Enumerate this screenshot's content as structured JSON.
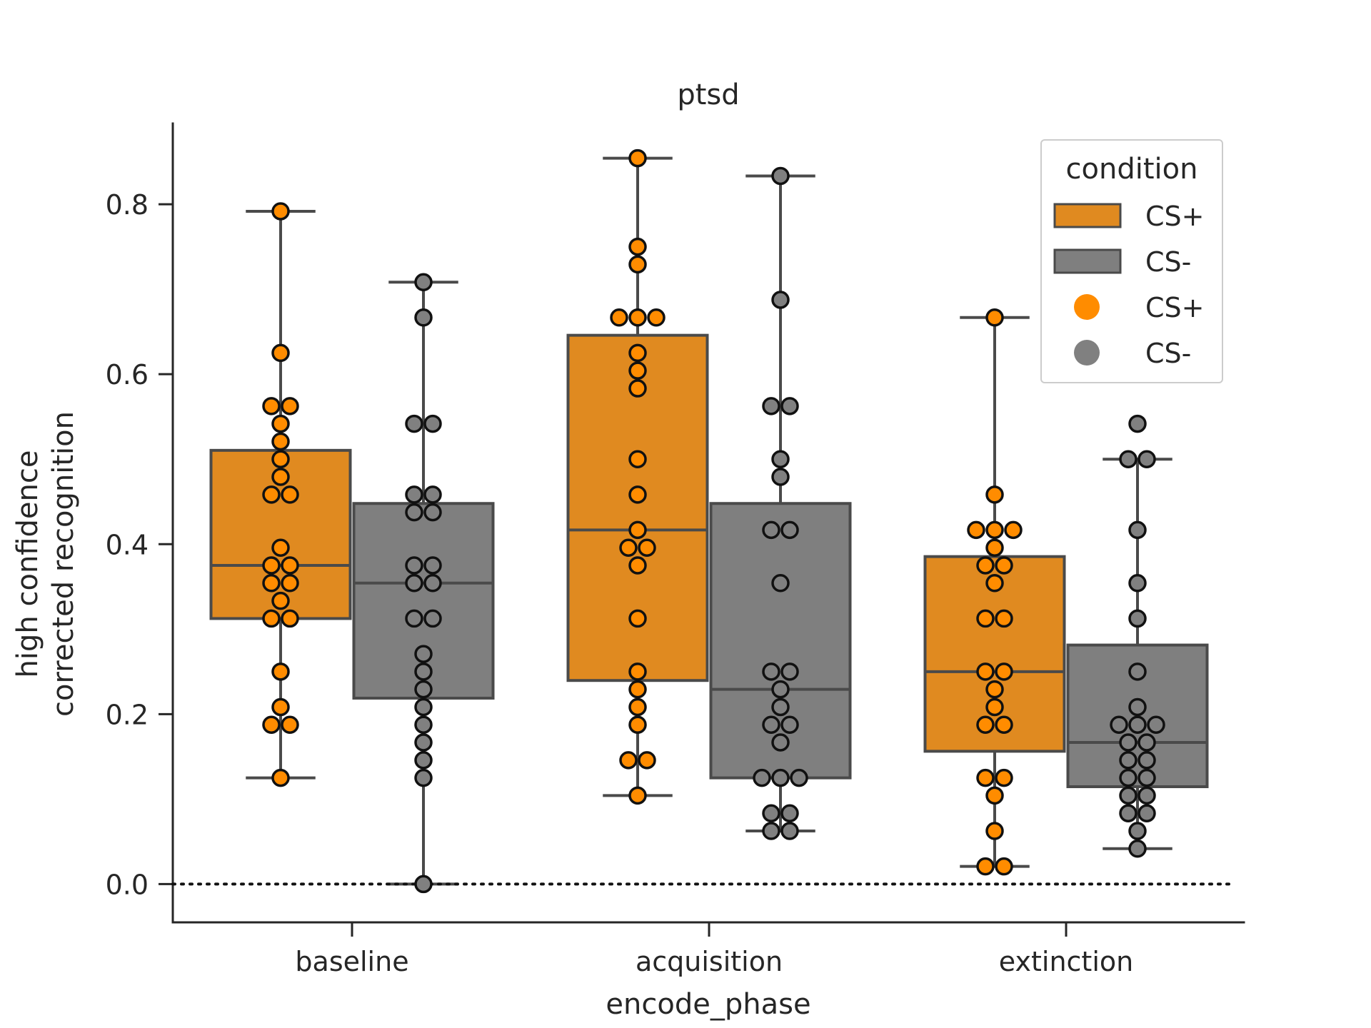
{
  "chart_data": {
    "type": "box",
    "title": "ptsd",
    "xlabel": "encode_phase",
    "ylabel_lines": [
      "high confidence",
      "corrected recognition"
    ],
    "categories": [
      "baseline",
      "acquisition",
      "extinction"
    ],
    "ylim": [
      -0.045,
      0.895
    ],
    "yticks": [
      "0.0",
      "0.2",
      "0.4",
      "0.6",
      "0.8"
    ],
    "ytick_values": [
      0.0,
      0.2,
      0.4,
      0.6,
      0.8
    ],
    "reference_line": 0.0,
    "grid": false,
    "legend": {
      "title": "condition",
      "position": "top-right",
      "entries": [
        {
          "label": "CS+",
          "kind": "box",
          "color": "#E08A20"
        },
        {
          "label": "CS-",
          "kind": "box",
          "color": "#7F7F7F"
        },
        {
          "label": "CS+",
          "kind": "point",
          "color": "#FF8C00"
        },
        {
          "label": "CS-",
          "kind": "point",
          "color": "#808080"
        }
      ]
    },
    "series": [
      {
        "name": "CS+",
        "box_color": "#E08A20",
        "point_color": "#FF8C00",
        "boxes": [
          {
            "category": "baseline",
            "whislo": 0.125,
            "q1": 0.3125,
            "median": 0.375,
            "q3": 0.5104,
            "whishi": 0.7917,
            "fliers": []
          },
          {
            "category": "acquisition",
            "whislo": 0.1042,
            "q1": 0.2396,
            "median": 0.4167,
            "q3": 0.6458,
            "whishi": 0.8542,
            "fliers": []
          },
          {
            "category": "extinction",
            "whislo": 0.0208,
            "q1": 0.1563,
            "median": 0.25,
            "q3": 0.3854,
            "whishi": 0.6667,
            "fliers": []
          }
        ],
        "points": [
          [
            0.7917,
            0.625,
            0.5625,
            0.5625,
            0.5417,
            0.5208,
            0.5,
            0.4792,
            0.4583,
            0.4583,
            0.3958,
            0.375,
            0.375,
            0.3542,
            0.3542,
            0.3333,
            0.3125,
            0.3125,
            0.25,
            0.2083,
            0.1875,
            0.1875,
            0.125
          ],
          [
            0.8542,
            0.75,
            0.7292,
            0.6667,
            0.6667,
            0.6667,
            0.625,
            0.6042,
            0.5833,
            0.5,
            0.4583,
            0.4167,
            0.3958,
            0.3958,
            0.375,
            0.3125,
            0.25,
            0.2292,
            0.2083,
            0.1875,
            0.1458,
            0.1458,
            0.1042
          ],
          [
            0.6667,
            0.4583,
            0.4167,
            0.4167,
            0.4167,
            0.3958,
            0.375,
            0.375,
            0.3542,
            0.3125,
            0.3125,
            0.25,
            0.25,
            0.2292,
            0.2083,
            0.1875,
            0.1875,
            0.125,
            0.125,
            0.1042,
            0.0625,
            0.0208,
            0.0208
          ]
        ]
      },
      {
        "name": "CS-",
        "box_color": "#7F7F7F",
        "point_color": "#808080",
        "boxes": [
          {
            "category": "baseline",
            "whislo": 0.0,
            "q1": 0.2188,
            "median": 0.3542,
            "q3": 0.4479,
            "whishi": 0.7083,
            "fliers": []
          },
          {
            "category": "acquisition",
            "whislo": 0.0625,
            "q1": 0.125,
            "median": 0.2292,
            "q3": 0.4479,
            "whishi": 0.8333,
            "fliers": []
          },
          {
            "category": "extinction",
            "whislo": 0.0417,
            "q1": 0.1146,
            "median": 0.1667,
            "q3": 0.2813,
            "whishi": 0.5,
            "fliers": [
              0.5417
            ]
          }
        ],
        "points": [
          [
            0.7083,
            0.6667,
            0.5417,
            0.5417,
            0.4583,
            0.4583,
            0.4375,
            0.4375,
            0.375,
            0.375,
            0.3542,
            0.3542,
            0.3125,
            0.3125,
            0.2708,
            0.25,
            0.2292,
            0.2083,
            0.1875,
            0.1667,
            0.1458,
            0.125,
            0.0
          ],
          [
            0.8333,
            0.6875,
            0.5625,
            0.5625,
            0.5,
            0.4792,
            0.4167,
            0.4167,
            0.3542,
            0.25,
            0.25,
            0.2292,
            0.2083,
            0.1875,
            0.1875,
            0.1667,
            0.125,
            0.125,
            0.125,
            0.0833,
            0.0833,
            0.0625,
            0.0625
          ],
          [
            0.5417,
            0.5,
            0.5,
            0.4167,
            0.3542,
            0.3125,
            0.25,
            0.2083,
            0.1875,
            0.1875,
            0.1875,
            0.1667,
            0.1667,
            0.1458,
            0.1458,
            0.125,
            0.125,
            0.1042,
            0.1042,
            0.0833,
            0.0833,
            0.0625,
            0.0417
          ]
        ]
      }
    ]
  }
}
